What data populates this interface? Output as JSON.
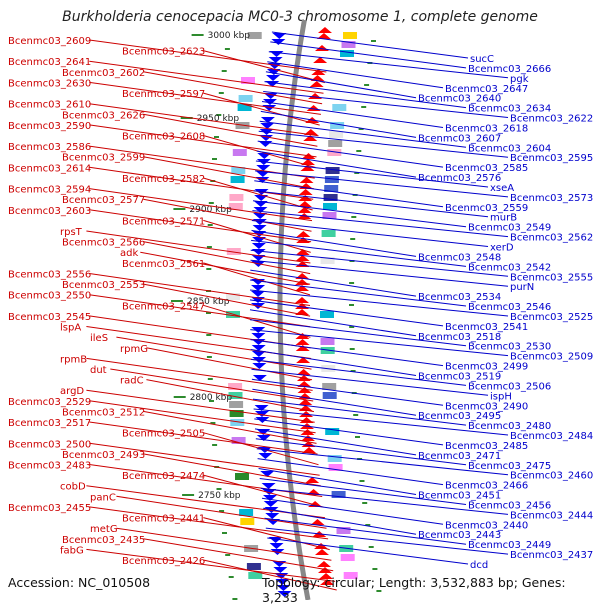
{
  "title": "Burkholderia cenocepacia MC0-3 chromosome 1, complete genome",
  "accession": "Accession: NC_010508",
  "summary": "Topology: circular; Length: 3,532,883 bp; Genes: 3,233",
  "colors": {
    "left_labels": "#cc0000",
    "right_labels": "#0000cc",
    "backbone": "#888888",
    "ticks": "#2e8b2e",
    "kbp_text": "#222222"
  },
  "kbp_markers": [
    "3000 kbp",
    "2950 kbp",
    "2900 kbp",
    "2850 kbp",
    "2800 kbp",
    "2750 kbp"
  ],
  "left_labels": [
    "Bcenmc03_2609",
    "Bcenmc03_2623",
    "Bcenmc03_2641",
    "Bcenmc03_2602",
    "Bcenmc03_2630",
    "Bcenmc03_2597",
    "Bcenmc03_2610",
    "Bcenmc03_2626",
    "Bcenmc03_2590",
    "Bcenmc03_2608",
    "Bcenmc03_2586",
    "Bcenmc03_2599",
    "Bcenmc03_2614",
    "Bcenmc03_2582",
    "Bcenmc03_2594",
    "Bcenmc03_2577",
    "Bcenmc03_2603",
    "Bcenmc03_2571",
    "rpsT",
    "Bcenmc03_2566",
    "adk",
    "Bcenmc03_2561",
    "Bcenmc03_2556",
    "Bcenmc03_2553",
    "Bcenmc03_2550",
    "Bcenmc03_2547",
    "Bcenmc03_2545",
    "lspA",
    "ileS",
    "rpmG",
    "rpmB",
    "dut",
    "radC",
    "argD",
    "Bcenmc03_2529",
    "Bcenmc03_2512",
    "Bcenmc03_2517",
    "Bcenmc03_2505",
    "Bcenmc03_2500",
    "Bcenmc03_2493",
    "Bcenmc03_2483",
    "Bcenmc03_2474",
    "cobD",
    "panC",
    "Bcenmc03_2455",
    "Bcenmc03_2441",
    "metG",
    "Bcenmc03_2435",
    "fabG",
    "Bcenmc03_2426"
  ],
  "right_labels": [
    "sucC",
    "Bcenmc03_2666",
    "pgk",
    "Bcenmc03_2647",
    "Bcenmc03_2640",
    "Bcenmc03_2634",
    "Bcenmc03_2622",
    "Bcenmc03_2618",
    "Bcenmc03_2607",
    "Bcenmc03_2604",
    "Bcenmc03_2595",
    "Bcenmc03_2585",
    "Bcenmc03_2576",
    "xseA",
    "Bcenmc03_2573",
    "Bcenmc03_2559",
    "murB",
    "Bcenmc03_2549",
    "Bcenmc03_2562",
    "xerD",
    "Bcenmc03_2548",
    "Bcenmc03_2542",
    "Bcenmc03_2555",
    "purN",
    "Bcenmc03_2534",
    "Bcenmc03_2546",
    "Bcenmc03_2525",
    "Bcenmc03_2541",
    "Bcenmc03_2518",
    "Bcenmc03_2530",
    "Bcenmc03_2509",
    "Bcenmc03_2499",
    "Bcenmc03_2519",
    "Bcenmc03_2506",
    "ispH",
    "Bcenmc03_2490",
    "Bcenmc03_2495",
    "Bcenmc03_2480",
    "Bcenmc03_2484",
    "Bcenmc03_2485",
    "Bcenmc03_2471",
    "Bcenmc03_2475",
    "Bcenmc03_2460",
    "Bcenmc03_2466",
    "Bcenmc03_2451",
    "Bcenmc03_2456",
    "Bcenmc03_2444",
    "Bcenmc03_2440",
    "Bcenmc03_2443",
    "Bcenmc03_2449",
    "Bcenmc03_2437",
    "dcd"
  ]
}
